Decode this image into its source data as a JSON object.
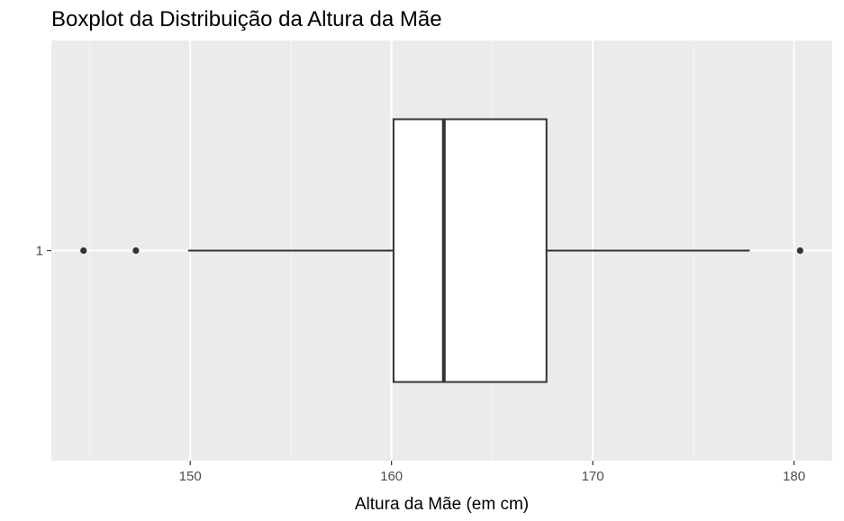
{
  "chart_data": {
    "type": "boxplot",
    "orientation": "horizontal",
    "title": "Boxplot da Distribuição da Altura da Mãe",
    "xlabel": "Altura da Mãe (em cm)",
    "ylabel": "",
    "xlim": [
      143.1,
      181.9
    ],
    "x_ticks": [
      150,
      160,
      170,
      180
    ],
    "y_categories": [
      "1"
    ],
    "grid": true,
    "box": {
      "category": "1",
      "whisker_low": 149.9,
      "q1": 160.1,
      "median": 162.6,
      "q3": 167.7,
      "whisker_high": 177.8,
      "outliers": [
        144.7,
        147.3,
        180.3
      ]
    },
    "colors": {
      "panel_background": "#EBEBEB",
      "grid_major": "#FFFFFF",
      "grid_minor": "#F5F5F5",
      "box_fill": "#FFFFFF",
      "box_line": "#333333",
      "outlier": "#333333",
      "tick_text": "#4D4D4D"
    }
  }
}
